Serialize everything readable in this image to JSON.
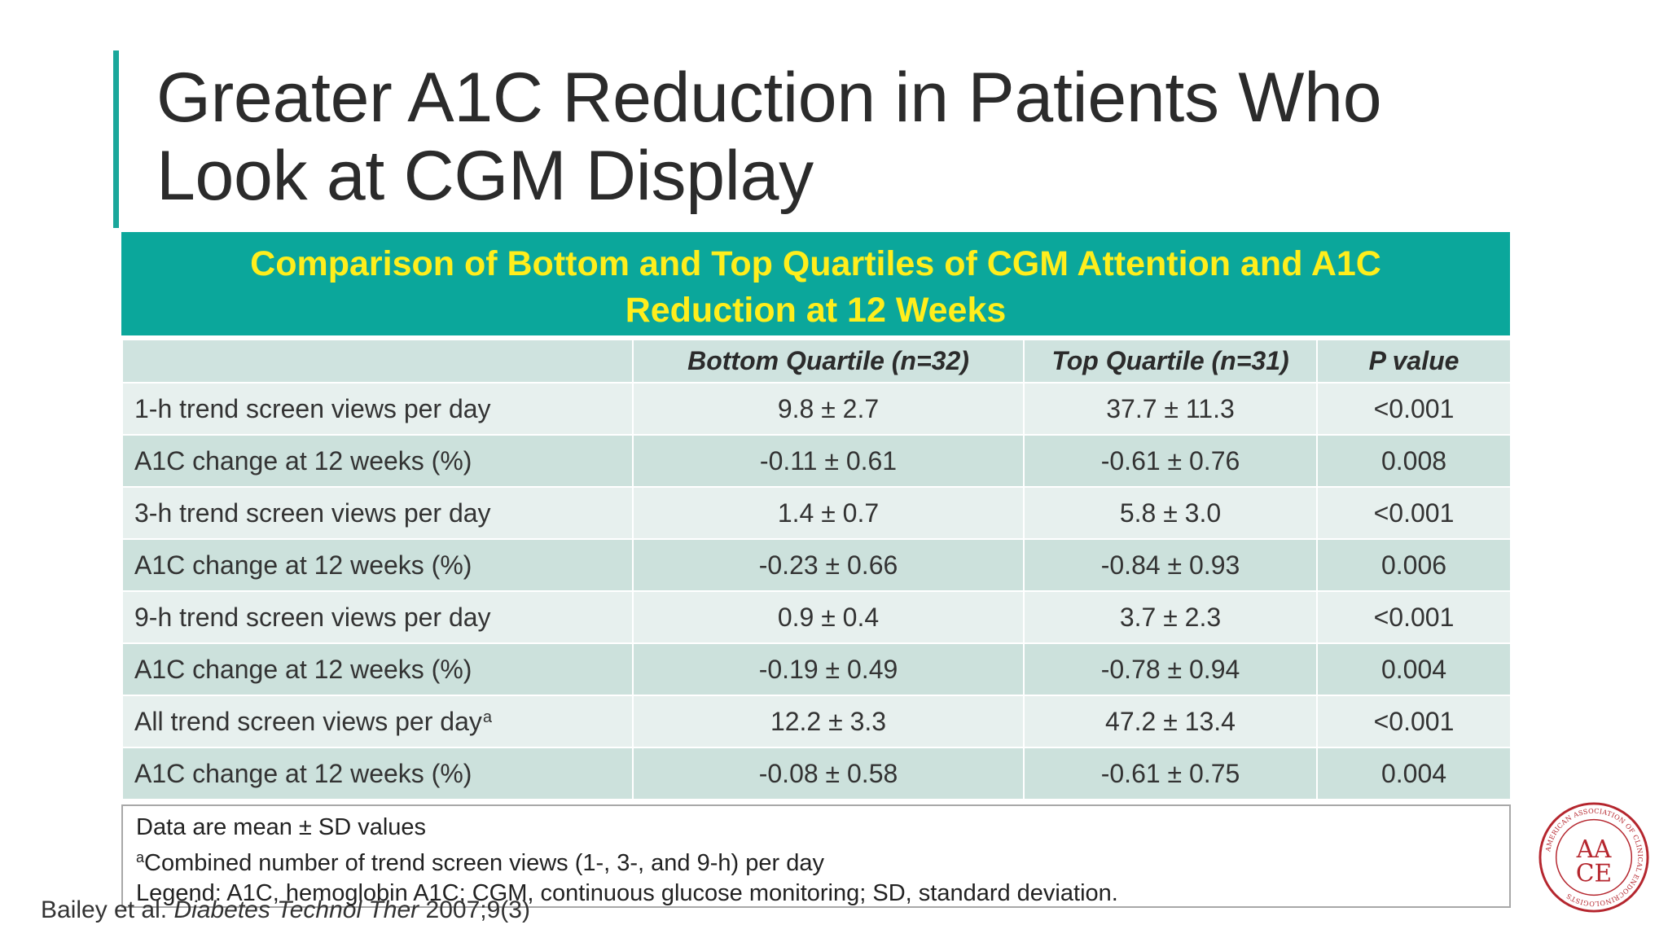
{
  "slide": {
    "title_line1": "Greater A1C Reduction in Patients Who",
    "title_line2": "Look at CGM Display",
    "accent_color": "#1aa79b"
  },
  "table": {
    "header_line1": "Comparison of Bottom and Top Quartiles of CGM Attention and A1C",
    "header_line2": "Reduction at 12 Weeks",
    "header_bg": "#0ba79b",
    "header_text_color": "#ffee1c",
    "columns": [
      "",
      "Bottom Quartile (n=32)",
      "Top Quartile (n=31)",
      "P value"
    ],
    "rows": [
      {
        "label": "1-h trend screen views per day",
        "label_sup": "",
        "bottom": "9.8 ± 2.7",
        "top": "37.7 ± 11.3",
        "p": "<0.001"
      },
      {
        "label": "A1C change at 12 weeks (%)",
        "label_sup": "",
        "bottom": "-0.11 ± 0.61",
        "top": "-0.61 ± 0.76",
        "p": "0.008"
      },
      {
        "label": "3-h trend screen views per day",
        "label_sup": "",
        "bottom": "1.4 ± 0.7",
        "top": "5.8 ± 3.0",
        "p": "<0.001"
      },
      {
        "label": "A1C change at 12 weeks (%)",
        "label_sup": "",
        "bottom": "-0.23 ± 0.66",
        "top": "-0.84 ± 0.93",
        "p": "0.006"
      },
      {
        "label": "9-h trend screen views per day",
        "label_sup": "",
        "bottom": "0.9 ± 0.4",
        "top": "3.7 ± 2.3",
        "p": "<0.001"
      },
      {
        "label": "A1C change at 12 weeks (%)",
        "label_sup": "",
        "bottom": "-0.19 ± 0.49",
        "top": "-0.78 ± 0.94",
        "p": "0.004"
      },
      {
        "label": "All trend screen views per day",
        "label_sup": "a",
        "bottom": "12.2 ± 3.3",
        "top": "47.2 ± 13.4",
        "p": "<0.001"
      },
      {
        "label": "A1C change at 12 weeks (%)",
        "label_sup": "",
        "bottom": "-0.08 ± 0.58",
        "top": "-0.61 ± 0.75",
        "p": "0.004"
      }
    ]
  },
  "notes": {
    "line1": "Data are mean ± SD values",
    "line2_sup": "a",
    "line2": "Combined number of trend screen views (1-, 3-, and 9-h) per day",
    "line3": "Legend: A1C, hemoglobin A1C; CGM, continuous glucose monitoring; SD, standard deviation."
  },
  "citation": {
    "authors": "Bailey et al.",
    "journal": "Diabetes Technol Ther",
    "details": "2007;9(3)"
  },
  "logo": {
    "icon": "aace-seal-icon",
    "ring_text": "AMERICAN ASSOCIATION OF CLINICAL ENDOCRINOLOGISTS",
    "monogram_top": "AA",
    "monogram_bottom": "CE",
    "color": "#b5262e"
  }
}
